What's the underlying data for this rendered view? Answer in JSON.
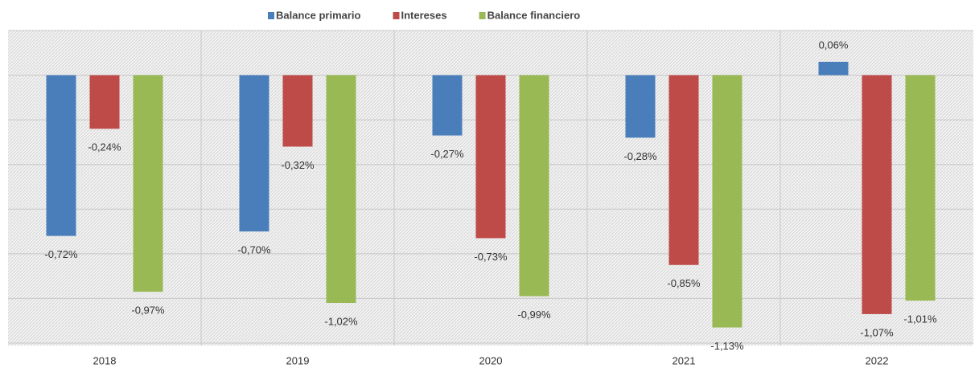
{
  "chart_data": {
    "type": "bar",
    "categories": [
      "2018",
      "2019",
      "2020",
      "2021",
      "2022"
    ],
    "series": [
      {
        "name": "Balance primario",
        "color": "#4a7ebb",
        "values": [
          -0.72,
          -0.7,
          -0.27,
          -0.28,
          0.06
        ],
        "value_labels": [
          "-0,72%",
          "-0,70%",
          "-0,27%",
          "-0,28%",
          "0,06%"
        ]
      },
      {
        "name": "Intereses",
        "color": "#be4b48",
        "values": [
          -0.24,
          -0.32,
          -0.73,
          -0.85,
          -1.07
        ],
        "value_labels": [
          "-0,24%",
          "-0,32%",
          "-0,73%",
          "-0,85%",
          "-1,07%"
        ]
      },
      {
        "name": "Balance financiero",
        "color": "#98b954",
        "values": [
          -0.97,
          -1.02,
          -0.99,
          -1.13,
          -1.01
        ],
        "value_labels": [
          "-0,97%",
          "-1,02%",
          "-0,99%",
          "-1,13%",
          "-1,01%"
        ]
      }
    ],
    "ylim": [
      -1.2,
      0.2
    ],
    "yticks": [
      -1.2,
      -1,
      -0.8,
      -0.6,
      -0.4,
      -0.2,
      0,
      0.2
    ],
    "grid": true
  }
}
